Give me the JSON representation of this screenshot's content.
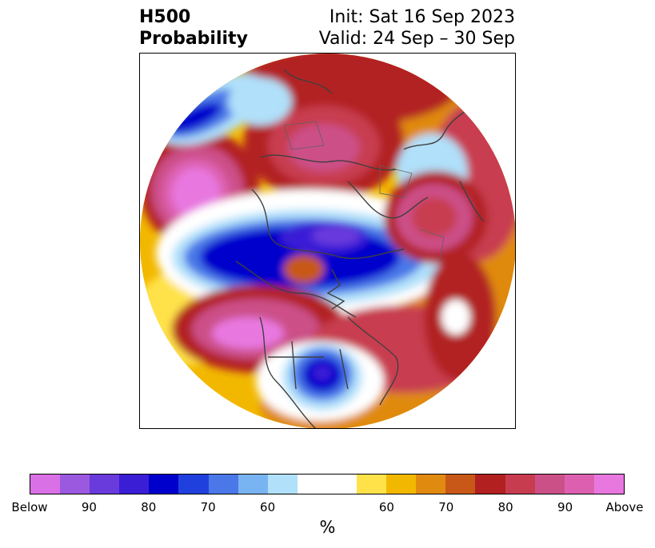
{
  "title": {
    "line1": "H500",
    "line2": "Probability"
  },
  "init_text": "Init: Sat 16 Sep 2023",
  "valid_text": "Valid: 24 Sep – 30 Sep",
  "colorbar": {
    "colors": [
      "#da70e6",
      "#9b59e0",
      "#6a3bdc",
      "#3a1ed6",
      "#0000cc",
      "#2040dd",
      "#4a78e8",
      "#78b4f2",
      "#b0e0fa",
      "#ffffff",
      "#ffffff",
      "#ffe24a",
      "#f2b800",
      "#e08a10",
      "#c85818",
      "#b22020",
      "#c83c50",
      "#cc5088",
      "#dd60b0",
      "#e878e0"
    ],
    "tick_labels": [
      "Below",
      "90",
      "80",
      "70",
      "60",
      "60",
      "70",
      "80",
      "90",
      "Above"
    ],
    "unit": "%"
  },
  "map_colors": {
    "land_lines": "#404040",
    "below_strong": "#0000cc",
    "above_strong": "#e878e0"
  }
}
